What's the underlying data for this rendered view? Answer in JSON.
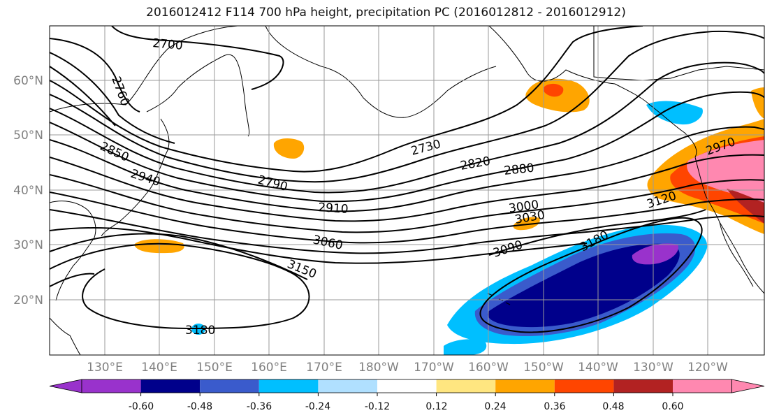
{
  "title": "2016012412 F114 700 hPa height, precipitation PC (2016012812 - 2016012912)",
  "lat_labels": [
    "60°N",
    "50°N",
    "40°N",
    "30°N",
    "20°N"
  ],
  "lon_labels": [
    "130°E",
    "140°E",
    "150°E",
    "160°E",
    "170°E",
    "180°W",
    "170°W",
    "160°W",
    "150°W",
    "140°W",
    "130°W",
    "120°W"
  ],
  "contour_labels": [
    "2700",
    "2760",
    "2850",
    "2940",
    "2730",
    "2790",
    "2820",
    "2880",
    "2910",
    "3000",
    "3030",
    "3060",
    "3090",
    "3150",
    "3180",
    "3120",
    "2970",
    "3180"
  ],
  "colorbar": {
    "tick_labels": [
      "-0.60",
      "-0.48",
      "-0.36",
      "-0.24",
      "-0.12",
      "0.12",
      "0.24",
      "0.36",
      "0.48",
      "0.60"
    ],
    "colors": [
      "#9932CC",
      "#00008B",
      "#3A5BCC",
      "#00BFFF",
      "#B0E0FF",
      "#FFFFFF",
      "#FFE680",
      "#FFA500",
      "#FF4500",
      "#B22222",
      "#FF88B0"
    ]
  },
  "colors": {
    "grid": "#9a9a9a",
    "contour": "#000000",
    "axis_label": "#808080"
  }
}
